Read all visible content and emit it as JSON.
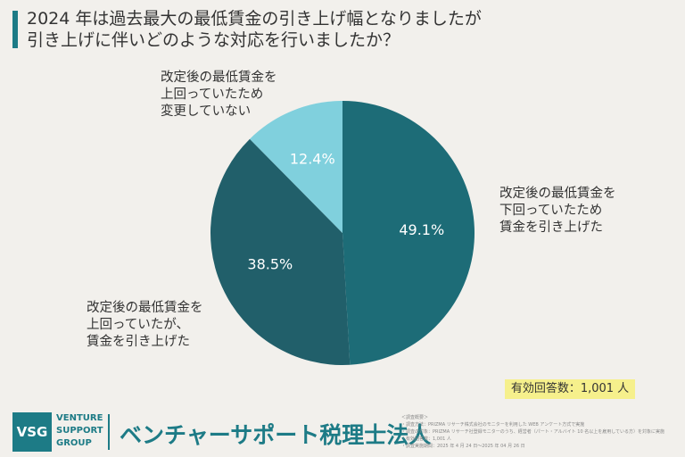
{
  "chart_data": {
    "type": "pie",
    "title": "2024 年は過去最大の最低賃金の引き上げ幅となりましたが\n引き上げに伴いどのような対応を行いましたか？",
    "categories": [
      "改定後の最低賃金を\n下回っていたため\n賃金を引き上げた",
      "改定後の最低賃金を\n上回っていたが、\n賃金を引き上げた",
      "改定後の最低賃金を\n上回っていたため\n変更していない"
    ],
    "values": [
      49.1,
      38.5,
      12.4
    ],
    "value_labels": [
      "49.1%",
      "38.5%",
      "12.4%"
    ],
    "colors": [
      "#1d6c77",
      "#215f6a",
      "#80d0dd"
    ],
    "annotation": "有効回答数：1,001 人"
  },
  "footer": {
    "logo": "VSG",
    "brand": "VENTURE\nSUPPORT\nGROUP",
    "company": "ベンチャーサポート税理士法人",
    "notes": [
      "＜調査概要＞",
      "・調査方法：PRIZMA リサーチ株式会社のモニターを利用した WEB アンケート方式で実施",
      "・調査の対象：PRIZMA リサーチ社登録モニターのうち、経営者（パート・アルバイト 10 名以上を雇用している方）を対象に実施",
      "・有効回答数：1,001 人",
      "・調査実施期間：2025 年 4 月 24 日～2025 年 04 月 26 日"
    ]
  }
}
